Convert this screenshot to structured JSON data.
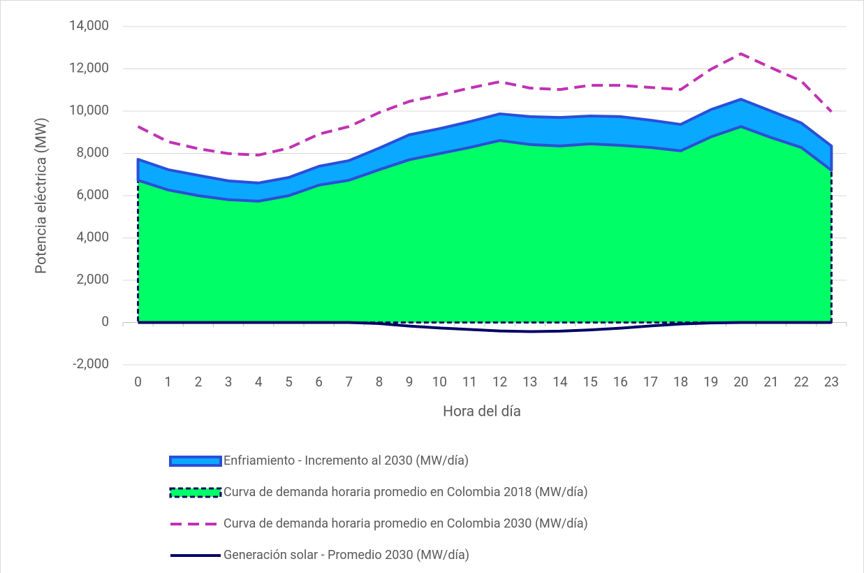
{
  "chart_data": {
    "type": "area",
    "stacked": true,
    "x_label": "Hora del día",
    "y_label": "Potencia eléctrica (MW)",
    "categories": [
      "0",
      "1",
      "2",
      "3",
      "4",
      "5",
      "6",
      "7",
      "8",
      "9",
      "10",
      "11",
      "12",
      "13",
      "14",
      "15",
      "16",
      "17",
      "18",
      "19",
      "20",
      "21",
      "22",
      "23"
    ],
    "ylim": [
      -2000,
      14000
    ],
    "yticks": [
      {
        "value": -2000,
        "label": "-2,000"
      },
      0,
      {
        "value": 2000,
        "label": "2,000"
      },
      {
        "value": 4000,
        "label": "4,000"
      },
      {
        "value": 6000,
        "label": "6,000"
      },
      {
        "value": 8000,
        "label": "8,000"
      },
      {
        "value": 10000,
        "label": "10,000"
      },
      {
        "value": 12000,
        "label": "12,000"
      },
      {
        "value": 14000,
        "label": "14,000"
      }
    ],
    "grid": true,
    "legend": "bottom",
    "series": [
      {
        "name": "Enfriamiento - Incremento al 2030 (MW/día)",
        "type": "area",
        "color": "#0aa8ff",
        "edge_color": "#2b4fd8",
        "dash": false,
        "values": [
          990,
          960,
          960,
          890,
          860,
          860,
          890,
          930,
          1020,
          1180,
          1180,
          1220,
          1260,
          1320,
          1350,
          1320,
          1360,
          1290,
          1250,
          1290,
          1290,
          1250,
          1160,
          1150
        ]
      },
      {
        "name": "Curva de demanda horaria promedio en Colombia 2018 (MW/día)",
        "type": "area",
        "color": "#00ff66",
        "edge_color": "#0a0a5e",
        "dash": true,
        "values": [
          6730,
          6270,
          6000,
          5810,
          5740,
          6000,
          6500,
          6730,
          7230,
          7700,
          7990,
          8280,
          8610,
          8420,
          8350,
          8450,
          8380,
          8280,
          8120,
          8780,
          9270,
          8750,
          8280,
          7200
        ]
      },
      {
        "name": "Curva de demanda horaria promedio en Colombia 2030 (MW/día)",
        "type": "line",
        "color": "#c032b4",
        "dash": true,
        "values": [
          9270,
          8550,
          8220,
          7990,
          7920,
          8250,
          8910,
          9270,
          9930,
          10460,
          10760,
          11090,
          11390,
          11090,
          11020,
          11220,
          11220,
          11120,
          11020,
          11980,
          12710,
          12050,
          11420,
          9970
        ]
      },
      {
        "name": "Generación solar - Promedio 2030 (MW/día)",
        "type": "line",
        "color": "#000066",
        "dash": false,
        "values": [
          0,
          0,
          0,
          0,
          0,
          0,
          0,
          0,
          -50,
          -170,
          -260,
          -330,
          -400,
          -430,
          -410,
          -350,
          -270,
          -160,
          -70,
          -20,
          0,
          0,
          0,
          0
        ]
      }
    ]
  }
}
